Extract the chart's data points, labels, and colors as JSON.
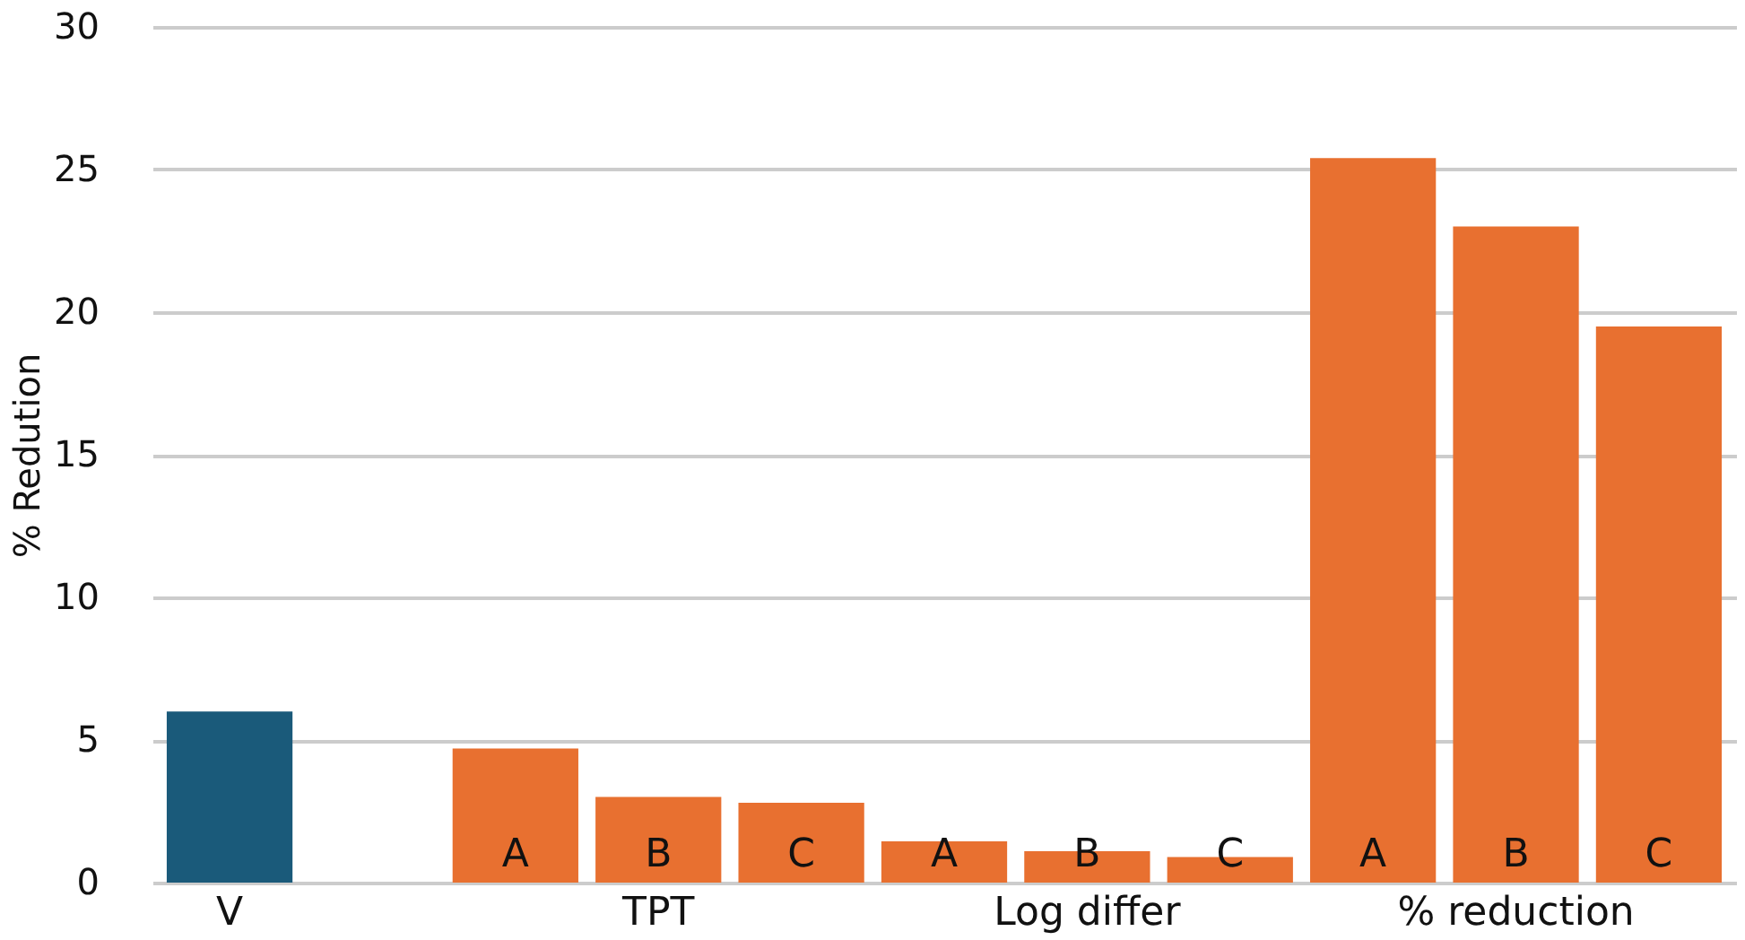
{
  "chart_data": {
    "type": "bar",
    "ylabel": "% Redution",
    "categories": [
      "V",
      null,
      "A",
      "B",
      "C",
      "A",
      "B",
      "C",
      "A",
      "B",
      "C"
    ],
    "values": [
      6.0,
      null,
      4.7,
      3.0,
      2.8,
      1.45,
      1.1,
      0.9,
      25.4,
      23.0,
      19.5
    ],
    "colors": [
      "#1a5a7a",
      "#e87030",
      "#e87030",
      "#e87030",
      "#e87030",
      "#e87030",
      "#e87030",
      "#e87030",
      "#e87030",
      "#e87030",
      "#e87030"
    ],
    "annotations": [
      "TPT",
      "Log differ",
      "% reduction"
    ],
    "ylim": [
      0,
      30
    ],
    "yticks": [
      0,
      5,
      10,
      15,
      20,
      25,
      30
    ],
    "grid": "y"
  }
}
